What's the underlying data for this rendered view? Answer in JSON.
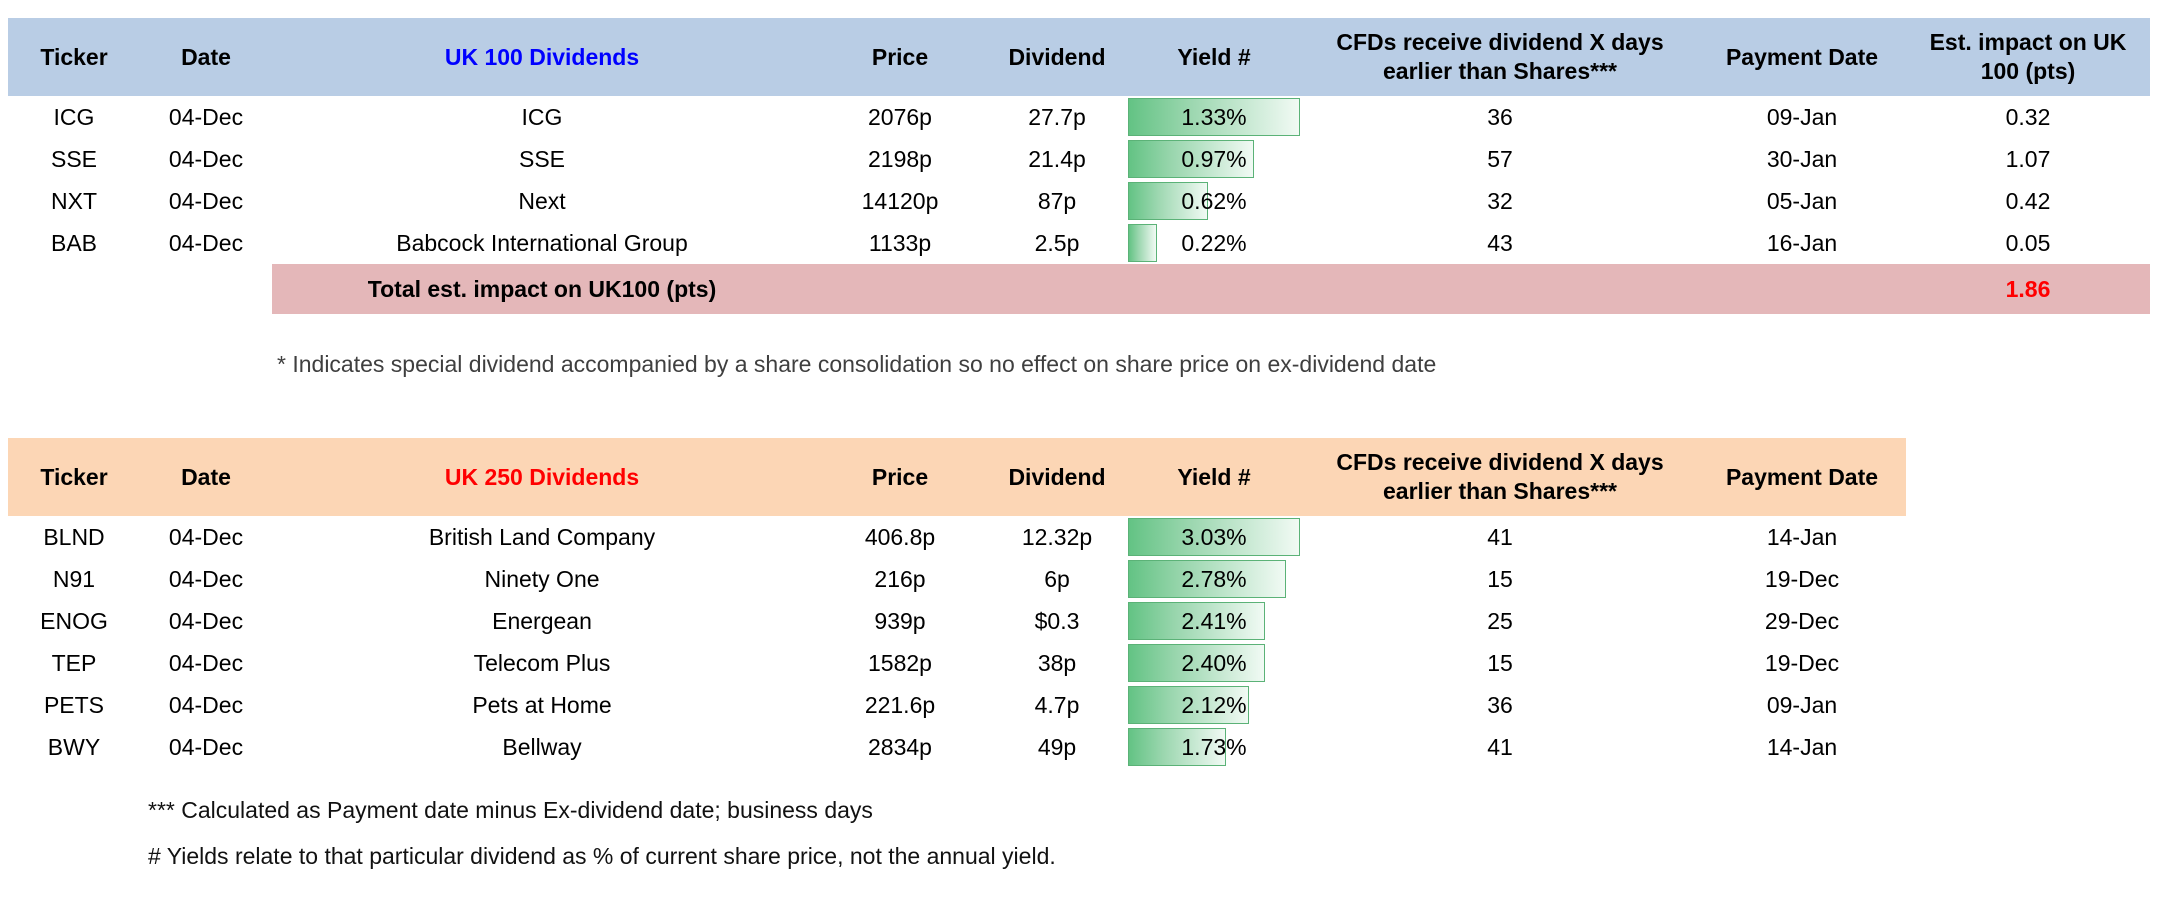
{
  "colors": {
    "uk100_header_bg": "#B9CDE5",
    "uk100_title": "#0000FF",
    "uk250_header_bg": "#FCD6B5",
    "uk250_title": "#FF0000",
    "total_row_bg": "#E4B7B9",
    "total_value": "#FF0000",
    "bar_fill": "#63C384",
    "bar_mid": "#9AD6AE",
    "bar_fade": "#F1FAF4",
    "bar_border": "#5BB277"
  },
  "table1": {
    "headers": {
      "ticker": "Ticker",
      "date": "Date",
      "name": "UK 100 Dividends",
      "price": "Price",
      "dividend": "Dividend",
      "yield": "Yield #",
      "cfds": "CFDs receive dividend X days earlier than Shares***",
      "payment": "Payment Date",
      "impact": "Est. impact on UK 100 (pts)"
    },
    "rows": [
      {
        "ticker": "ICG",
        "date": "04-Dec",
        "name": "ICG",
        "price": "2076p",
        "dividend": "27.7p",
        "yield": "1.33%",
        "cfds": "36",
        "payment": "09-Jan",
        "impact": "0.32"
      },
      {
        "ticker": "SSE",
        "date": "04-Dec",
        "name": "SSE",
        "price": "2198p",
        "dividend": "21.4p",
        "yield": "0.97%",
        "cfds": "57",
        "payment": "30-Jan",
        "impact": "1.07"
      },
      {
        "ticker": "NXT",
        "date": "04-Dec",
        "name": "Next",
        "price": "14120p",
        "dividend": "87p",
        "yield": "0.62%",
        "cfds": "32",
        "payment": "05-Jan",
        "impact": "0.42"
      },
      {
        "ticker": "BAB",
        "date": "04-Dec",
        "name": "Babcock International Group",
        "price": "1133p",
        "dividend": "2.5p",
        "yield": "0.22%",
        "cfds": "43",
        "payment": "16-Jan",
        "impact": "0.05"
      }
    ],
    "total_label": "Total est. impact on UK100 (pts)",
    "total_value": "1.86"
  },
  "footnote_special": "* Indicates special dividend accompanied by a share consolidation so no effect on share price on ex-dividend date",
  "table2": {
    "headers": {
      "ticker": "Ticker",
      "date": "Date",
      "name": "UK 250 Dividends",
      "price": "Price",
      "dividend": "Dividend",
      "yield": "Yield #",
      "cfds": "CFDs receive dividend X days earlier than Shares***",
      "payment": "Payment Date"
    },
    "rows": [
      {
        "ticker": "BLND",
        "date": "04-Dec",
        "name": "British Land Company",
        "price": "406.8p",
        "dividend": "12.32p",
        "yield": "3.03%",
        "cfds": "41",
        "payment": "14-Jan"
      },
      {
        "ticker": "N91",
        "date": "04-Dec",
        "name": "Ninety One",
        "price": "216p",
        "dividend": "6p",
        "yield": "2.78%",
        "cfds": "15",
        "payment": "19-Dec"
      },
      {
        "ticker": "ENOG",
        "date": "04-Dec",
        "name": "Energean",
        "price": "939p",
        "dividend": "$0.3",
        "yield": "2.41%",
        "cfds": "25",
        "payment": "29-Dec"
      },
      {
        "ticker": "TEP",
        "date": "04-Dec",
        "name": "Telecom Plus",
        "price": "1582p",
        "dividend": "38p",
        "yield": "2.40%",
        "cfds": "15",
        "payment": "19-Dec"
      },
      {
        "ticker": "PETS",
        "date": "04-Dec",
        "name": "Pets at Home",
        "price": "221.6p",
        "dividend": "4.7p",
        "yield": "2.12%",
        "cfds": "36",
        "payment": "09-Jan"
      },
      {
        "ticker": "BWY",
        "date": "04-Dec",
        "name": "Bellway",
        "price": "2834p",
        "dividend": "49p",
        "yield": "1.73%",
        "cfds": "41",
        "payment": "14-Jan"
      }
    ]
  },
  "footnotes": [
    "*** Calculated as Payment date minus Ex-dividend date; business days",
    "# Yields relate to that particular dividend as % of current share price, not the annual yield."
  ]
}
